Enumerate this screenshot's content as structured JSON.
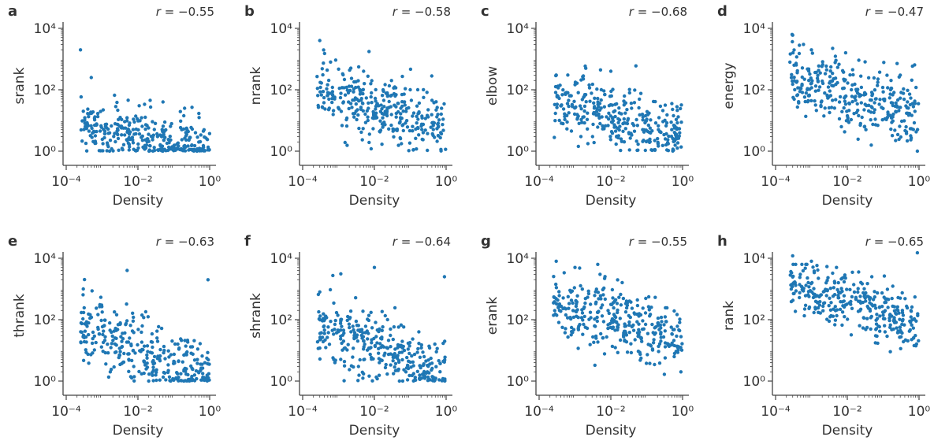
{
  "colors": {
    "points": "#1f77b4",
    "axes": "#444444",
    "text": "#333333"
  },
  "chart_data": [
    {
      "type": "scatter",
      "panel": "a",
      "ylabel": "srank",
      "xlabel": "Density",
      "r_text": "= −0.55",
      "xscale": "log",
      "yscale": "log",
      "xlim": [
        0.0001,
        1
      ],
      "ylim": [
        1,
        10000
      ],
      "grid": false,
      "x_ticks": [
        0.0001,
        0.01,
        1
      ],
      "y_ticks": [
        1,
        100,
        10000
      ],
      "trend": {
        "intercept": 0.0,
        "slope": -0.26,
        "spread": 0.45
      },
      "points": [
        [
          0.00025,
          2000
        ],
        [
          0.0005,
          250
        ],
        [
          0.05,
          40
        ],
        [
          0.2,
          25
        ],
        [
          0.0003,
          20
        ]
      ]
    },
    {
      "type": "scatter",
      "panel": "b",
      "ylabel": "nrank",
      "xlabel": "Density",
      "r_text": "= −0.58",
      "xscale": "log",
      "yscale": "log",
      "xlim": [
        0.0001,
        1
      ],
      "ylim": [
        1,
        10000
      ],
      "grid": false,
      "x_ticks": [
        0.0001,
        0.01,
        1
      ],
      "y_ticks": [
        1,
        100,
        10000
      ],
      "trend": {
        "intercept": 1.0,
        "slope": -0.32,
        "spread": 0.55
      },
      "points": [
        [
          0.0003,
          4000
        ],
        [
          0.0006,
          800
        ],
        [
          0.005,
          400
        ],
        [
          0.03,
          200
        ],
        [
          0.1,
          100
        ]
      ]
    },
    {
      "type": "scatter",
      "panel": "c",
      "ylabel": "elbow",
      "xlabel": "Density",
      "r_text": "= −0.68",
      "xscale": "log",
      "yscale": "log",
      "xlim": [
        0.0001,
        1
      ],
      "ylim": [
        1,
        10000
      ],
      "grid": false,
      "x_ticks": [
        0.0001,
        0.01,
        1
      ],
      "y_ticks": [
        1,
        100,
        10000
      ],
      "trend": {
        "intercept": 0.9,
        "slope": -0.38,
        "spread": 0.5
      },
      "points": [
        [
          0.0003,
          300
        ],
        [
          0.002,
          500
        ],
        [
          0.01,
          400
        ],
        [
          0.05,
          600
        ],
        [
          0.5,
          5
        ]
      ]
    },
    {
      "type": "scatter",
      "panel": "d",
      "ylabel": "energy",
      "xlabel": "Density",
      "r_text": "= −0.47",
      "xscale": "log",
      "yscale": "log",
      "xlim": [
        0.0001,
        1
      ],
      "ylim": [
        1,
        10000
      ],
      "grid": false,
      "x_ticks": [
        0.0001,
        0.01,
        1
      ],
      "y_ticks": [
        1,
        100,
        10000
      ],
      "trend": {
        "intercept": 1.6,
        "slope": -0.35,
        "spread": 0.6
      },
      "points": [
        [
          0.0003,
          6000
        ],
        [
          0.0006,
          3000
        ],
        [
          0.001,
          2000
        ],
        [
          0.3,
          300
        ],
        [
          0.9,
          1
        ]
      ]
    },
    {
      "type": "scatter",
      "panel": "e",
      "ylabel": "thrank",
      "xlabel": "Density",
      "r_text": "= −0.63",
      "xscale": "log",
      "yscale": "log",
      "xlim": [
        0.0001,
        1
      ],
      "ylim": [
        1,
        10000
      ],
      "grid": false,
      "x_ticks": [
        0.0001,
        0.01,
        1
      ],
      "y_ticks": [
        1,
        100,
        10000
      ],
      "trend": {
        "intercept": 0.9,
        "slope": -0.45,
        "spread": 0.55
      },
      "points": [
        [
          0.005,
          4000
        ],
        [
          0.0003,
          1000
        ],
        [
          0.9,
          2000
        ],
        [
          0.5,
          2
        ],
        [
          0.02,
          1
        ]
      ]
    },
    {
      "type": "scatter",
      "panel": "f",
      "ylabel": "shrank",
      "xlabel": "Density",
      "r_text": "= −0.64",
      "xscale": "log",
      "yscale": "log",
      "xlim": [
        0.0001,
        1
      ],
      "ylim": [
        1,
        10000
      ],
      "grid": false,
      "x_ticks": [
        0.0001,
        0.01,
        1
      ],
      "y_ticks": [
        1,
        100,
        10000
      ],
      "trend": {
        "intercept": 1.0,
        "slope": -0.45,
        "spread": 0.55
      },
      "points": [
        [
          0.01,
          5000
        ],
        [
          0.0003,
          800
        ],
        [
          0.9,
          2500
        ],
        [
          0.3,
          2
        ],
        [
          0.05,
          1
        ]
      ]
    },
    {
      "type": "scatter",
      "panel": "g",
      "ylabel": "erank",
      "xlabel": "Density",
      "r_text": "= −0.55",
      "xscale": "log",
      "yscale": "log",
      "xlim": [
        0.0001,
        1
      ],
      "ylim": [
        1,
        10000
      ],
      "grid": false,
      "x_ticks": [
        0.0001,
        0.01,
        1
      ],
      "y_ticks": [
        1,
        100,
        10000
      ],
      "trend": {
        "intercept": 1.6,
        "slope": -0.3,
        "spread": 0.55
      },
      "points": [
        [
          0.0003,
          8000
        ],
        [
          0.001,
          5000
        ],
        [
          0.005,
          3000
        ],
        [
          0.9,
          2
        ],
        [
          0.5,
          15
        ]
      ]
    },
    {
      "type": "scatter",
      "panel": "h",
      "ylabel": "rank",
      "xlabel": "Density",
      "r_text": "= −0.65",
      "xscale": "log",
      "yscale": "log",
      "xlim": [
        0.0001,
        1
      ],
      "ylim": [
        1,
        10000
      ],
      "grid": false,
      "x_ticks": [
        0.0001,
        0.01,
        1
      ],
      "y_ticks": [
        1,
        100,
        10000
      ],
      "trend": {
        "intercept": 2.3,
        "slope": -0.35,
        "spread": 0.45
      },
      "points": [
        [
          0.0003,
          12000
        ],
        [
          0.001,
          8000
        ],
        [
          0.005,
          5000
        ],
        [
          0.9,
          15000
        ],
        [
          0.3,
          500
        ]
      ]
    }
  ]
}
